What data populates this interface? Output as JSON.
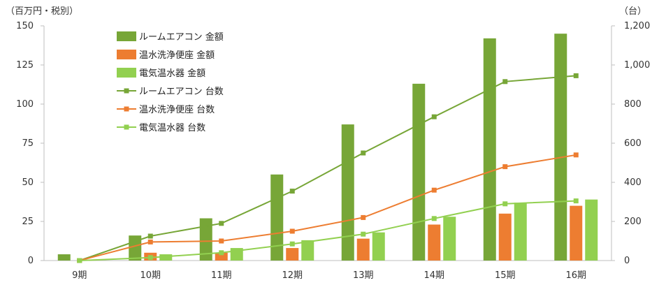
{
  "chart_data": {
    "type": "bar",
    "title": "",
    "left_axis_unit": "（百万円・税別）",
    "right_axis_unit": "（台）",
    "categories": [
      "9期",
      "10期",
      "11期",
      "12期",
      "13期",
      "14期",
      "15期",
      "16期"
    ],
    "y_left": {
      "ticks": [
        "150",
        "125",
        "100",
        "75",
        "50",
        "25",
        "0"
      ],
      "range": [
        0,
        150
      ]
    },
    "y_right": {
      "ticks": [
        "1,200",
        "1,000",
        "800",
        "600",
        "400",
        "200",
        "0"
      ],
      "range": [
        0,
        1200
      ]
    },
    "grid": false,
    "legend_position": "top-left",
    "bar_series": [
      {
        "name": "ルームエアコン 金額",
        "color": "#77A637",
        "values": [
          4,
          16,
          27,
          55,
          87,
          113,
          142,
          145
        ]
      },
      {
        "name": "温水洗浄便座 金額",
        "color": "#ED7D31",
        "values": [
          0,
          5,
          5,
          8,
          14,
          23,
          30,
          35
        ]
      },
      {
        "name": "電気温水器 金額",
        "color": "#92D050",
        "values": [
          0,
          4,
          8,
          13,
          18,
          28,
          37,
          39
        ]
      }
    ],
    "line_series": [
      {
        "name": "ルームエアコン 台数",
        "color": "#77A637",
        "values": [
          0,
          125,
          190,
          355,
          550,
          735,
          915,
          945
        ]
      },
      {
        "name": "温水洗浄便座 台数",
        "color": "#ED7D31",
        "values": [
          0,
          95,
          100,
          150,
          220,
          360,
          480,
          540
        ]
      },
      {
        "name": "電気温水器 台数",
        "color": "#92D050",
        "values": [
          0,
          15,
          40,
          85,
          135,
          215,
          290,
          305
        ]
      }
    ]
  }
}
